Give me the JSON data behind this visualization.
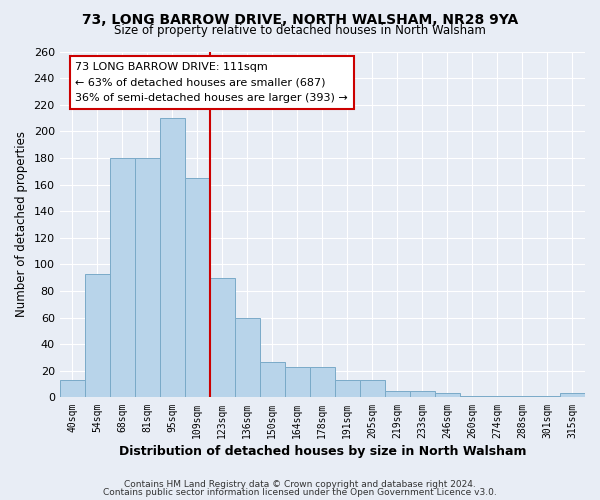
{
  "title": "73, LONG BARROW DRIVE, NORTH WALSHAM, NR28 9YA",
  "subtitle": "Size of property relative to detached houses in North Walsham",
  "xlabel": "Distribution of detached houses by size in North Walsham",
  "ylabel": "Number of detached properties",
  "footer_line1": "Contains HM Land Registry data © Crown copyright and database right 2024.",
  "footer_line2": "Contains public sector information licensed under the Open Government Licence v3.0.",
  "bar_labels": [
    "40sqm",
    "54sqm",
    "68sqm",
    "81sqm",
    "95sqm",
    "109sqm",
    "123sqm",
    "136sqm",
    "150sqm",
    "164sqm",
    "178sqm",
    "191sqm",
    "205sqm",
    "219sqm",
    "233sqm",
    "246sqm",
    "260sqm",
    "274sqm",
    "288sqm",
    "301sqm",
    "315sqm"
  ],
  "bar_values": [
    13,
    93,
    180,
    180,
    210,
    165,
    90,
    60,
    27,
    23,
    23,
    13,
    13,
    5,
    5,
    3,
    1,
    1,
    1,
    1,
    3
  ],
  "bar_color": "#b8d4ea",
  "bar_edge_color": "#7aaac8",
  "marker_line_x_label": "109sqm",
  "marker_line_color": "#cc0000",
  "annotation_title": "73 LONG BARROW DRIVE: 111sqm",
  "annotation_line1": "← 63% of detached houses are smaller (687)",
  "annotation_line2": "36% of semi-detached houses are larger (393) →",
  "annotation_box_color": "white",
  "annotation_box_edge_color": "#cc0000",
  "ylim": [
    0,
    260
  ],
  "yticks": [
    0,
    20,
    40,
    60,
    80,
    100,
    120,
    140,
    160,
    180,
    200,
    220,
    240,
    260
  ],
  "background_color": "#e8edf5",
  "grid_color": "white",
  "title_fontsize": 10,
  "subtitle_fontsize": 8.5
}
